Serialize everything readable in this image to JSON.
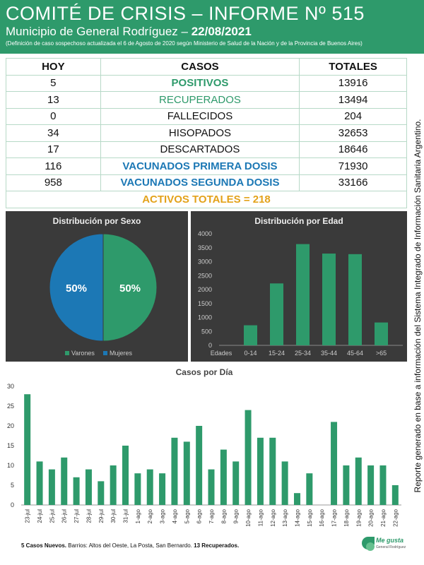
{
  "header": {
    "title": "COMITÉ DE CRISIS – INFORME Nº 515",
    "subtitle_prefix": "Municipio de General Rodríguez – ",
    "date": "22/08/2021",
    "note": "(Definición de caso sospechoso actualizada el 6 de Agosto de 2020 según Ministerio de Salud de la Nación y de la Provincia de Buenos Aires)"
  },
  "table": {
    "headers": [
      "HOY",
      "CASOS",
      "TOTALES"
    ],
    "rows": [
      {
        "hoy": "5",
        "casos": "POSITIVOS",
        "totales": "13916"
      },
      {
        "hoy": "13",
        "casos": "RECUPERADOS",
        "totales": "13494"
      },
      {
        "hoy": "0",
        "casos": "FALLECIDOS",
        "totales": "204"
      },
      {
        "hoy": "34",
        "casos": "HISOPADOS",
        "totales": "32653"
      },
      {
        "hoy": "17",
        "casos": "DESCARTADOS",
        "totales": "18646"
      },
      {
        "hoy": "116",
        "casos": "VACUNADOS PRIMERA DOSIS",
        "totales": "71930"
      },
      {
        "hoy": "958",
        "casos": "VACUNADOS SEGUNDA DOSIS",
        "totales": "33166"
      }
    ],
    "activos": "ACTIVOS TOTALES = 218"
  },
  "side_text": "Reporte generado en base a información del Sistema Integrado de Información Sanitaria Argentino.",
  "colors": {
    "green": "#2e9a6b",
    "blue": "#1c78b5",
    "orange": "#e3a21a",
    "panel": "#3a3a3a"
  },
  "chart_data": [
    {
      "type": "pie",
      "title": "Distribución por Sexo",
      "labels": [
        "Varones",
        "Mujeres"
      ],
      "values": [
        50,
        50
      ],
      "data_labels": [
        "50%",
        "50%"
      ],
      "colors": [
        "#2e9a6b",
        "#1c78b5"
      ],
      "legend": "bottom"
    },
    {
      "type": "bar",
      "title": "Distribución por Edad",
      "x_axis_label": "Edades",
      "categories": [
        "0-14",
        "15-24",
        "25-34",
        "35-44",
        "45-64",
        ">65"
      ],
      "values": [
        720,
        2220,
        3630,
        3290,
        3270,
        820
      ],
      "ylim": [
        0,
        4000
      ],
      "yticks": [
        0,
        500,
        1000,
        1500,
        2000,
        2500,
        3000,
        3500,
        4000
      ],
      "color": "#2e9a6b",
      "grid": false
    },
    {
      "type": "bar",
      "title": "Casos por Día",
      "categories": [
        "23-jul",
        "24-jul",
        "25-jul",
        "26-jul",
        "27-jul",
        "28-jul",
        "29-jul",
        "30-jul",
        "31-jul",
        "1-ago",
        "2-ago",
        "3-ago",
        "4-ago",
        "5-ago",
        "6-ago",
        "7-ago",
        "8-ago",
        "9-ago",
        "10-ago",
        "11-ago",
        "12-ago",
        "13-ago",
        "14-ago",
        "15-ago",
        "16-ago",
        "17-ago",
        "18-ago",
        "19-ago",
        "20-ago",
        "21-ago",
        "22-ago"
      ],
      "values": [
        28,
        11,
        9,
        12,
        7,
        9,
        6,
        10,
        15,
        8,
        9,
        8,
        17,
        16,
        20,
        9,
        14,
        11,
        24,
        17,
        17,
        11,
        3,
        8,
        0,
        21,
        10,
        12,
        10,
        10,
        5
      ],
      "ylim": [
        0,
        30
      ],
      "yticks": [
        0,
        5,
        10,
        15,
        20,
        25,
        30
      ],
      "color": "#2e9a6b",
      "grid": false
    }
  ],
  "footer": {
    "nuevos": "5 Casos Nuevos.",
    "barrios": " Barrios: Altos del Oeste, La Posta, San Bernardo. ",
    "recuperados": "13 Recuperados."
  },
  "logo": {
    "text": "Me gusta",
    "sub": "General Rodríguez"
  }
}
